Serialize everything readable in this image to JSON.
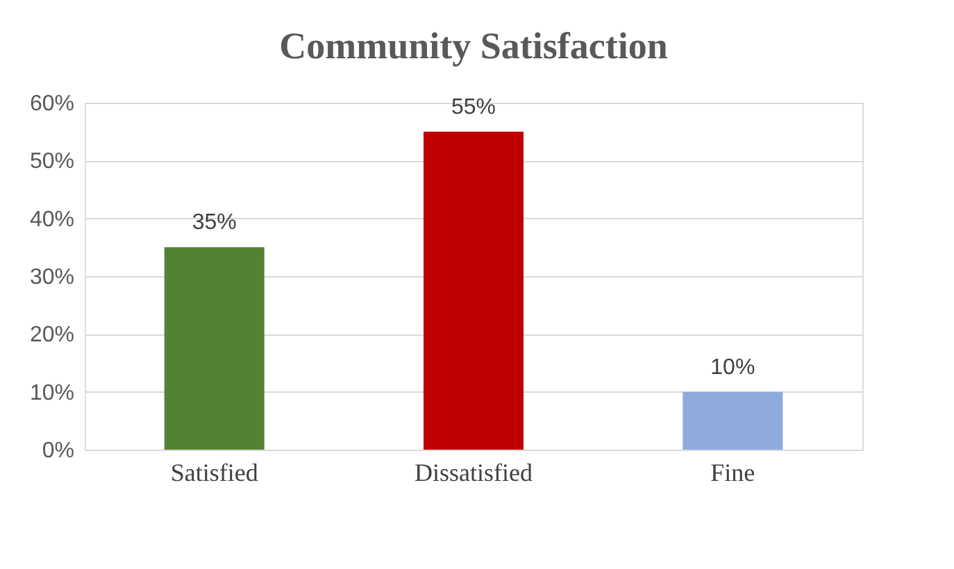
{
  "chart_data": {
    "type": "bar",
    "title": "Community Satisfaction",
    "categories": [
      "Satisfied",
      "Dissatisfied",
      "Fine"
    ],
    "values": [
      35,
      55,
      10
    ],
    "colors": [
      "#548235",
      "#c00000",
      "#8faadc"
    ],
    "value_labels": [
      "35%",
      "55%",
      "10%"
    ],
    "ylim": [
      0,
      60
    ],
    "yticks": [
      {
        "value": 0,
        "label": "0%"
      },
      {
        "value": 10,
        "label": "10%"
      },
      {
        "value": 20,
        "label": "20%"
      },
      {
        "value": 30,
        "label": "30%"
      },
      {
        "value": 40,
        "label": "40%"
      },
      {
        "value": 50,
        "label": "50%"
      },
      {
        "value": 60,
        "label": "60%"
      }
    ],
    "grid": "y"
  }
}
